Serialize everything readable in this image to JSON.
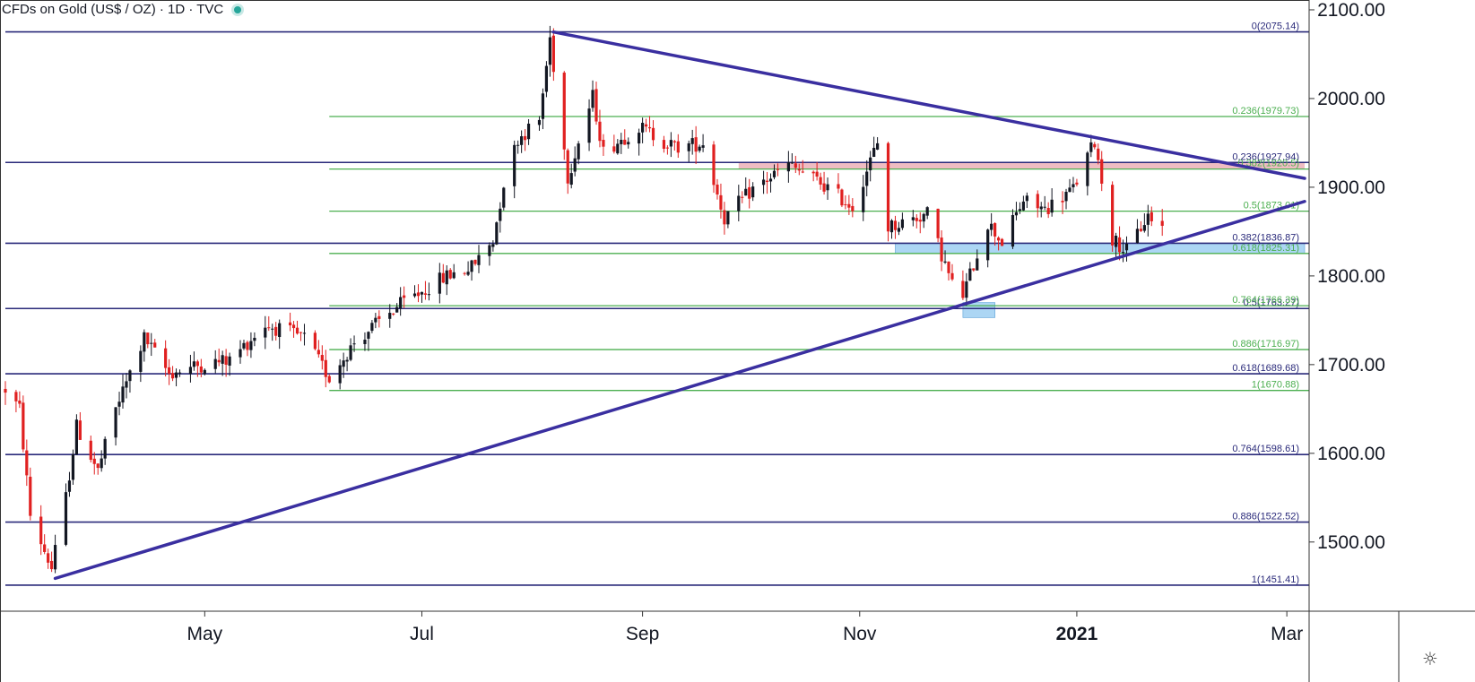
{
  "title": "CFDs on Gold (US$ / OZ) · 1D · TVC",
  "colors": {
    "up": "#131722",
    "down": "#e02020",
    "trend": "#3a2fa0",
    "fib_green": "#4caf50",
    "fib_navy": "#2a2a7a",
    "resistance_zone": "#e8a0a8",
    "support_zone": "#90c8f0",
    "axis_text": "#131722"
  },
  "chart_data": {
    "type": "candlestick",
    "ylim": [
      1422,
      2103
    ],
    "yticks": [
      "1500.00",
      "1600.00",
      "1700.00",
      "1800.00",
      "1900.00",
      "2000.00",
      "2100.00"
    ],
    "xticks": [
      {
        "label": "May",
        "date": "2020-05-01",
        "bold": false
      },
      {
        "label": "Jul",
        "date": "2020-07-01",
        "bold": false
      },
      {
        "label": "Sep",
        "date": "2020-09-01",
        "bold": false
      },
      {
        "label": "Nov",
        "date": "2020-11-01",
        "bold": false
      },
      {
        "label": "2021",
        "date": "2021-01-01",
        "bold": true
      },
      {
        "label": "Mar",
        "date": "2021-03-01",
        "bold": false
      }
    ],
    "price_path": [
      {
        "date": "2020-03-06",
        "price": 1672
      },
      {
        "date": "2020-03-10",
        "price": 1650
      },
      {
        "date": "2020-03-13",
        "price": 1530
      },
      {
        "date": "2020-03-16",
        "price": 1500
      },
      {
        "date": "2020-03-19",
        "price": 1470
      },
      {
        "date": "2020-03-23",
        "price": 1550
      },
      {
        "date": "2020-03-26",
        "price": 1630
      },
      {
        "date": "2020-04-01",
        "price": 1580
      },
      {
        "date": "2020-04-06",
        "price": 1650
      },
      {
        "date": "2020-04-10",
        "price": 1690
      },
      {
        "date": "2020-04-14",
        "price": 1730
      },
      {
        "date": "2020-04-21",
        "price": 1690
      },
      {
        "date": "2020-04-30",
        "price": 1700
      },
      {
        "date": "2020-05-08",
        "price": 1705
      },
      {
        "date": "2020-05-18",
        "price": 1745
      },
      {
        "date": "2020-05-29",
        "price": 1730
      },
      {
        "date": "2020-06-05",
        "price": 1685
      },
      {
        "date": "2020-06-12",
        "price": 1725
      },
      {
        "date": "2020-06-24",
        "price": 1765
      },
      {
        "date": "2020-07-08",
        "price": 1800
      },
      {
        "date": "2020-07-15",
        "price": 1810
      },
      {
        "date": "2020-07-21",
        "price": 1840
      },
      {
        "date": "2020-07-24",
        "price": 1905
      },
      {
        "date": "2020-07-28",
        "price": 1955
      },
      {
        "date": "2020-08-03",
        "price": 1975
      },
      {
        "date": "2020-08-06",
        "price": 2068
      },
      {
        "date": "2020-08-11",
        "price": 1912
      },
      {
        "date": "2020-08-18",
        "price": 2002
      },
      {
        "date": "2020-08-21",
        "price": 1940
      },
      {
        "date": "2020-08-31",
        "price": 1968
      },
      {
        "date": "2020-09-10",
        "price": 1945
      },
      {
        "date": "2020-09-18",
        "price": 1950
      },
      {
        "date": "2020-09-24",
        "price": 1865
      },
      {
        "date": "2020-10-02",
        "price": 1898
      },
      {
        "date": "2020-10-12",
        "price": 1925
      },
      {
        "date": "2020-10-21",
        "price": 1905
      },
      {
        "date": "2020-10-30",
        "price": 1878
      },
      {
        "date": "2020-11-06",
        "price": 1950
      },
      {
        "date": "2020-11-09",
        "price": 1855
      },
      {
        "date": "2020-11-20",
        "price": 1870
      },
      {
        "date": "2020-11-27",
        "price": 1790
      },
      {
        "date": "2020-11-30",
        "price": 1778
      },
      {
        "date": "2020-12-07",
        "price": 1860
      },
      {
        "date": "2020-12-11",
        "price": 1838
      },
      {
        "date": "2020-12-17",
        "price": 1885
      },
      {
        "date": "2020-12-23",
        "price": 1875
      },
      {
        "date": "2020-12-31",
        "price": 1898
      },
      {
        "date": "2021-01-06",
        "price": 1952
      },
      {
        "date": "2021-01-11",
        "price": 1842
      },
      {
        "date": "2021-01-15",
        "price": 1828
      },
      {
        "date": "2021-01-21",
        "price": 1868
      },
      {
        "date": "2021-01-25",
        "price": 1855
      }
    ],
    "fib_levels": [
      {
        "label": "0(2075.14)",
        "price": 2075.14,
        "set": "navy",
        "from": "2020-03-06"
      },
      {
        "label": "0.236(1927.94)",
        "price": 1927.94,
        "set": "navy",
        "from": "2020-03-06"
      },
      {
        "label": "0.382(1836.87)",
        "price": 1836.87,
        "set": "navy",
        "from": "2020-03-06"
      },
      {
        "label": "0.5(1763.27)",
        "price": 1763.27,
        "set": "navy",
        "from": "2020-03-06"
      },
      {
        "label": "0.618(1689.68)",
        "price": 1689.68,
        "set": "navy",
        "from": "2020-03-06"
      },
      {
        "label": "0.764(1598.61)",
        "price": 1598.61,
        "set": "navy",
        "from": "2020-03-06"
      },
      {
        "label": "0.886(1522.52)",
        "price": 1522.52,
        "set": "navy",
        "from": "2020-03-06"
      },
      {
        "label": "1(1451.41)",
        "price": 1451.41,
        "set": "navy",
        "from": "2020-03-06"
      },
      {
        "label": "0.236(1979.73)",
        "price": 1979.73,
        "set": "green",
        "from": "2020-06-05"
      },
      {
        "label": "0.382(1920.5)",
        "price": 1920.5,
        "set": "green",
        "from": "2020-06-05"
      },
      {
        "label": "0.5(1873.01)",
        "price": 1873.01,
        "set": "green",
        "from": "2020-06-05"
      },
      {
        "label": "0.618(1825.31)",
        "price": 1825.31,
        "set": "green",
        "from": "2020-06-05"
      },
      {
        "label": "0.764(1766.39)",
        "price": 1766.39,
        "set": "green",
        "from": "2020-06-05"
      },
      {
        "label": "0.886(1716.97)",
        "price": 1716.97,
        "set": "green",
        "from": "2020-06-05"
      },
      {
        "label": "1(1670.88)",
        "price": 1670.88,
        "set": "green",
        "from": "2020-06-05"
      }
    ],
    "trendlines": [
      {
        "from": {
          "date": "2020-03-20",
          "price": 1459
        },
        "to": {
          "date": "2021-03-06",
          "price": 1884
        }
      },
      {
        "from": {
          "date": "2020-08-07",
          "price": 2075
        },
        "to": {
          "date": "2021-03-06",
          "price": 1910
        }
      }
    ],
    "zones": [
      {
        "type": "resistance",
        "from_date": "2020-09-28",
        "to_date": "2021-03-06",
        "low": 1920.5,
        "high": 1927.94
      },
      {
        "type": "support",
        "from_date": "2020-11-11",
        "to_date": "2021-03-06",
        "low": 1825.31,
        "high": 1836.87
      },
      {
        "type": "support",
        "from_date": "2020-11-30",
        "to_date": "2020-12-09",
        "low": 1753,
        "high": 1770
      }
    ]
  },
  "settings_icon": "gear-icon"
}
